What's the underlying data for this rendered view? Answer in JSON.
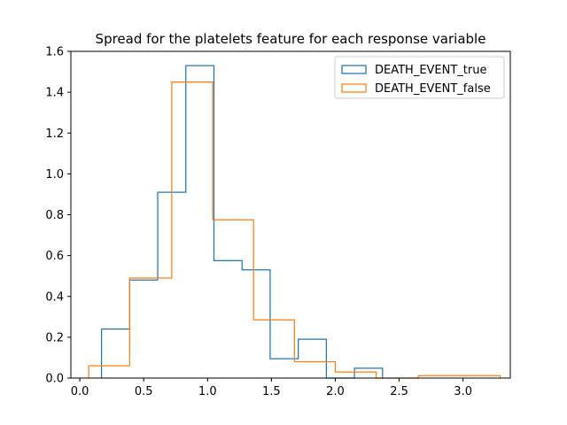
{
  "chart_data": {
    "type": "histogram-step",
    "title": "Spread for the platelets feature for each response variable",
    "xlabel": "",
    "ylabel": "",
    "xlim": [
      -0.07,
      3.37
    ],
    "ylim": [
      0,
      1.6
    ],
    "x_ticks": [
      0.0,
      0.5,
      1.0,
      1.5,
      2.0,
      2.5,
      3.0
    ],
    "x_tick_labels": [
      "0.0",
      "0.5",
      "1.0",
      "1.5",
      "2.0",
      "2.5",
      "3.0"
    ],
    "y_ticks": [
      0.0,
      0.2,
      0.4,
      0.6,
      0.8,
      1.0,
      1.2,
      1.4,
      1.6
    ],
    "y_tick_labels": [
      "0.0",
      "0.2",
      "0.4",
      "0.6",
      "0.8",
      "1.0",
      "1.2",
      "1.4",
      "1.6"
    ],
    "grid": false,
    "legend_position": "top-right",
    "series": [
      {
        "name": "DEATH_EVENT_true",
        "color": "#1f77b4",
        "bin_edges": [
          0.17,
          0.39,
          0.61,
          0.83,
          1.05,
          1.27,
          1.49,
          1.71,
          1.93,
          2.15,
          2.37
        ],
        "values": [
          0.24,
          0.48,
          0.91,
          1.53,
          0.575,
          0.53,
          0.095,
          0.19,
          0.0,
          0.048
        ]
      },
      {
        "name": "DEATH_EVENT_false",
        "color": "#ff7f0e",
        "bin_edges": [
          0.07,
          0.39,
          0.72,
          1.04,
          1.36,
          1.68,
          2.0,
          2.32,
          2.65,
          2.97,
          3.29
        ],
        "values": [
          0.06,
          0.49,
          1.45,
          0.775,
          0.285,
          0.08,
          0.03,
          0.0,
          0.012,
          0.012
        ]
      }
    ]
  }
}
